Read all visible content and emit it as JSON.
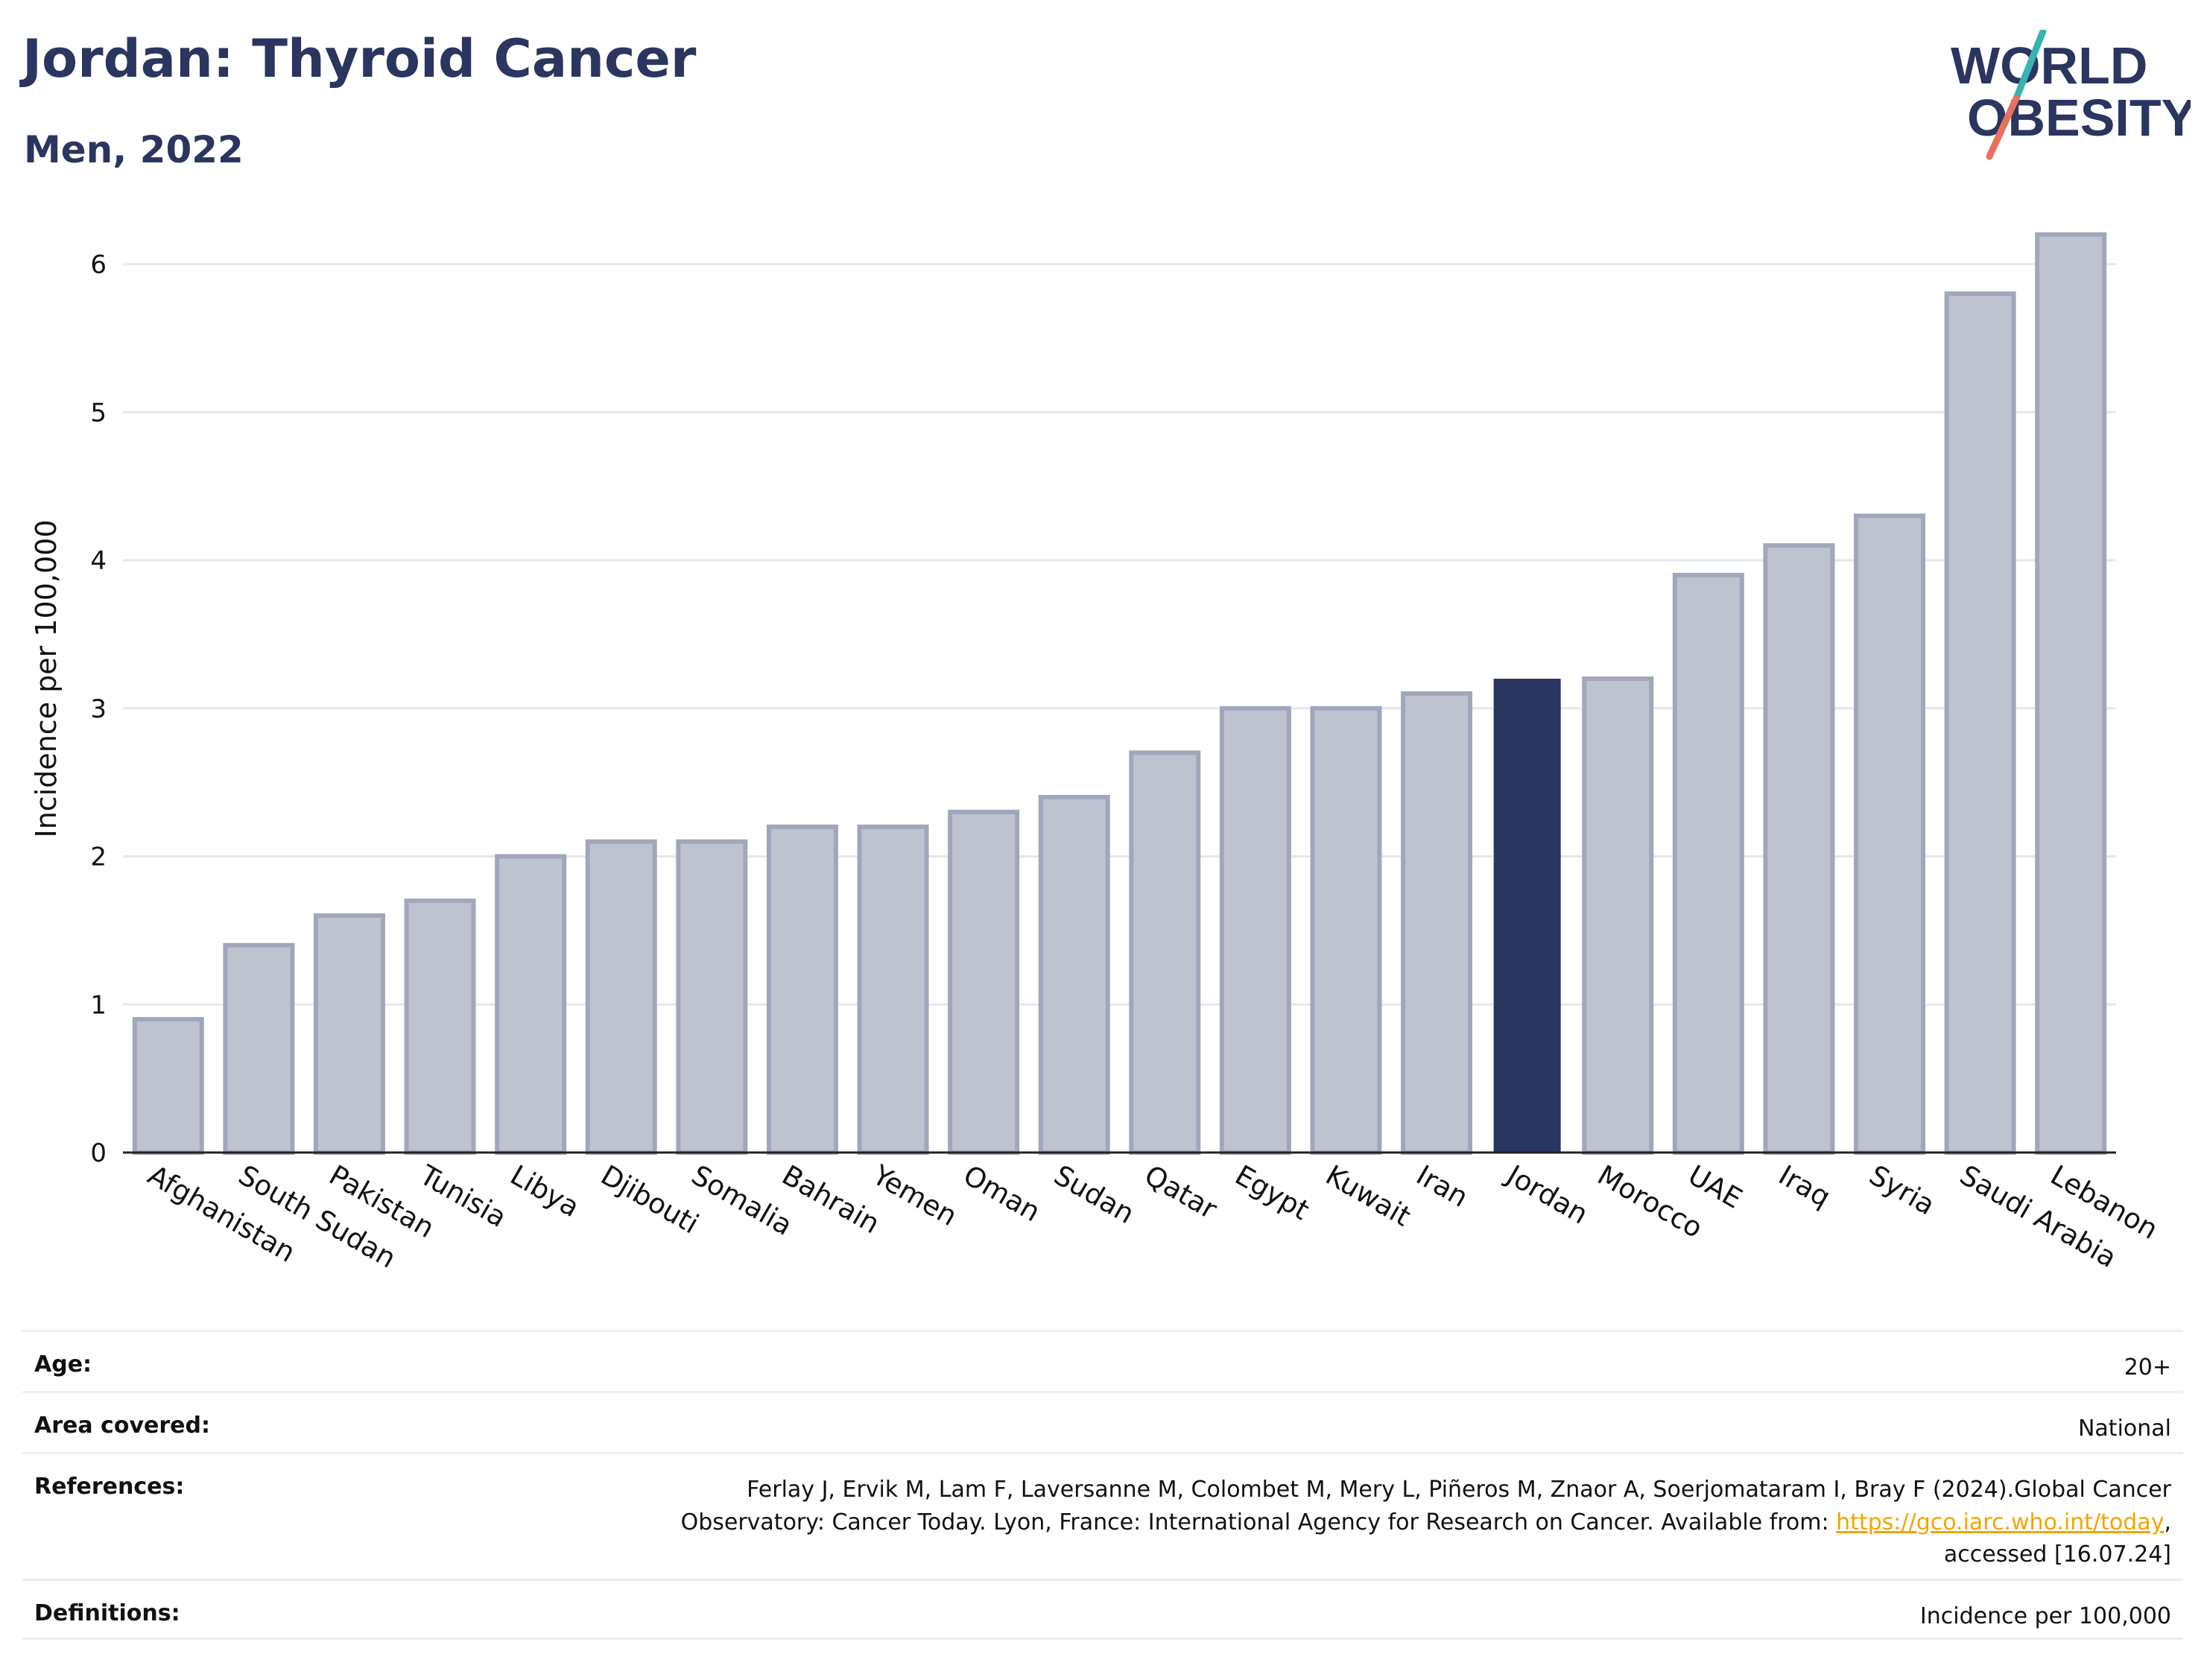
{
  "title": "Jordan: Thyroid Cancer",
  "subtitle": "Men, 2022",
  "logo": {
    "line1": "WORLD",
    "line2": "OBESITY"
  },
  "colors": {
    "bar": "#bfc3d0",
    "bar_stroke": "#a0a7bb",
    "highlight": "#2a3560",
    "grid": "#e6e8ee",
    "text": "#111111",
    "title": "#2a3560",
    "logo_teal": "#38b3b0",
    "logo_coral": "#e8705f"
  },
  "chart_data": {
    "type": "bar",
    "categories": [
      "Afghanistan",
      "South Sudan",
      "Pakistan",
      "Tunisia",
      "Libya",
      "Djibouti",
      "Somalia",
      "Bahrain",
      "Yemen",
      "Oman",
      "Sudan",
      "Qatar",
      "Egypt",
      "Kuwait",
      "Iran",
      "Jordan",
      "Morocco",
      "UAE",
      "Iraq",
      "Syria",
      "Saudi Arabia",
      "Lebanon"
    ],
    "values": [
      0.9,
      1.4,
      1.6,
      1.7,
      2.0,
      2.1,
      2.1,
      2.2,
      2.2,
      2.3,
      2.4,
      2.7,
      3.0,
      3.0,
      3.1,
      3.2,
      3.2,
      3.9,
      4.1,
      4.3,
      5.8,
      6.2
    ],
    "highlight": "Jordan",
    "ylabel": "Incidence per 100,000",
    "ylim": [
      0,
      6.4
    ],
    "yticks": [
      0,
      1,
      2,
      3,
      4,
      5,
      6
    ],
    "grid": true
  },
  "info": [
    {
      "label": "Age:",
      "value": "20+"
    },
    {
      "label": "Area covered:",
      "value": "National"
    },
    {
      "label": "References:",
      "value": "Ferlay J, Ervik M, Lam F, Laversanne M, Colombet M, Mery L, Piñeros M, Znaor A, Soerjomataram I, Bray F (2024).Global Cancer Observatory: Cancer Today. Lyon, France: International Agency for Research on Cancer. Available from:",
      "link": "https://gco.iarc.who.int/today",
      "after": ", accessed [16.07.24]"
    },
    {
      "label": "Definitions:",
      "value": "Incidence per 100,000"
    }
  ]
}
